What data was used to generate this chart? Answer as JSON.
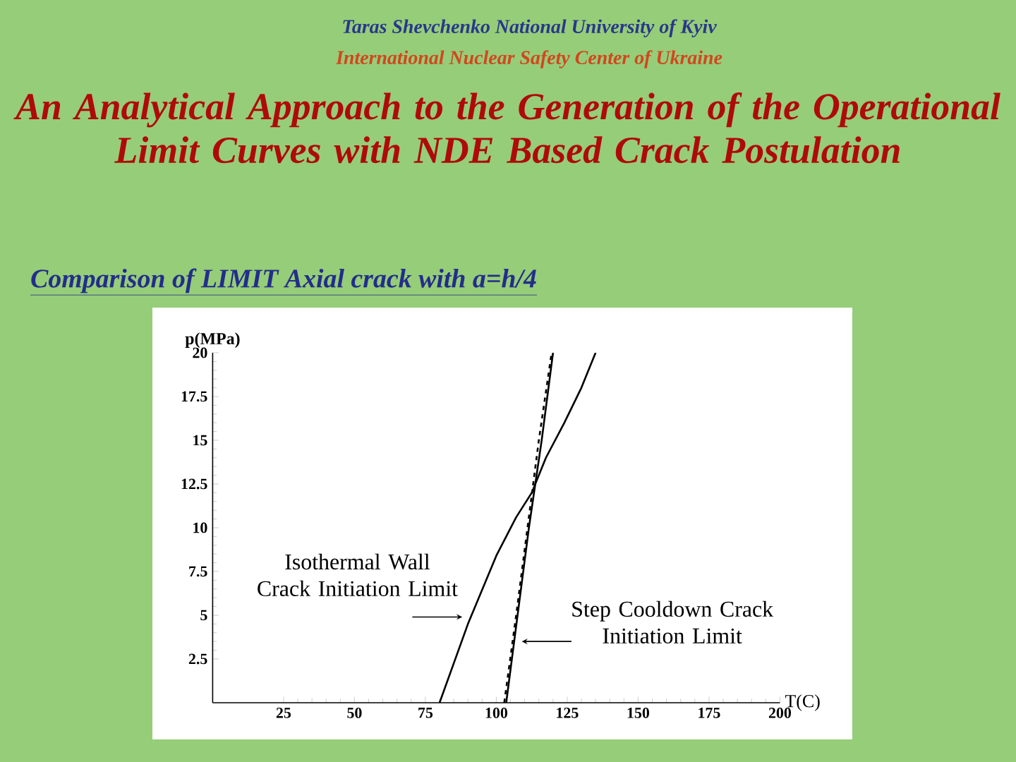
{
  "chart_data": {
    "type": "line",
    "title": "An Analytical Approach to the Generation of the Operational Limit Curves with NDE Based Crack Postulation",
    "subtitle": "Comparison of LIMIT Axial crack with a=h/4",
    "xlabel": "T(C)",
    "ylabel": "p(MPa)",
    "annotations": [
      "Taras Shevchenko National University of Kyiv",
      "International Nuclear Safety Center of Ukraine",
      {
        "text": "Isothermal Wall Crack Initiation Limit",
        "x": 88,
        "y": 4.9
      },
      {
        "text": "Step Cooldown Crack Initiation Limit",
        "x": 109,
        "y": 3.5
      }
    ],
    "xlim": [
      0,
      200
    ],
    "ylim": [
      0,
      20
    ],
    "xticks": [
      25,
      50,
      75,
      100,
      125,
      150,
      175,
      200
    ],
    "yticks": [
      2.5,
      5,
      7.5,
      10,
      12.5,
      15,
      17.5,
      20
    ],
    "marker": "none",
    "series": [
      {
        "color": "#000000",
        "line_style": "solid",
        "x": [
          80,
          90,
          100,
          107,
          112.5,
          117.5,
          124,
          130,
          135
        ],
        "values": [
          0,
          4.5,
          8.4,
          10.6,
          12,
          14,
          16,
          18,
          20
        ]
      },
      {
        "color": "#000000",
        "line_style": "dashed",
        "x": [
          102.8,
          107,
          111,
          115,
          119.5
        ],
        "values": [
          0,
          5,
          10,
          15,
          20
        ]
      },
      {
        "color": "#000000",
        "line_style": "solid",
        "x": [
          103.5,
          107.5,
          111.5,
          116,
          120
        ],
        "values": [
          0,
          5,
          10,
          15,
          20
        ]
      }
    ]
  }
}
